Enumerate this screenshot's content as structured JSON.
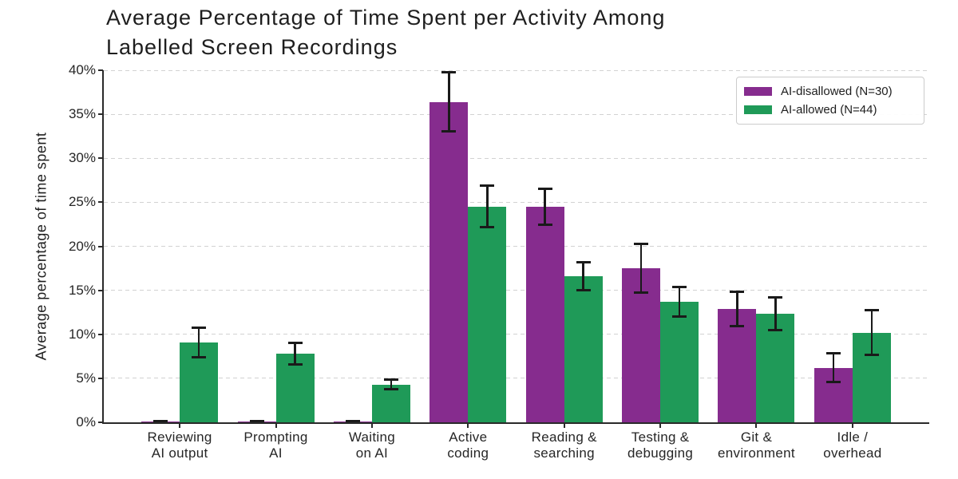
{
  "chart_data": {
    "type": "bar",
    "title": "Average Percentage of Time Spent per Activity Among\nLabelled Screen Recordings",
    "ylabel": "Average percentage of time spent",
    "xlabel": "",
    "ylim": [
      0,
      40
    ],
    "yticks": [
      "0%",
      "5%",
      "10%",
      "15%",
      "20%",
      "25%",
      "30%",
      "35%",
      "40%"
    ],
    "grid": "horizontal-dashed",
    "legend_position": "top-right",
    "categories": [
      "Reviewing\nAI output",
      "Prompting\nAI",
      "Waiting\non AI",
      "Active\ncoding",
      "Reading &\nsearching",
      "Testing &\ndebugging",
      "Git &\nenvironment",
      "Idle /\noverhead"
    ],
    "series": [
      {
        "name": "AI-disallowed (N=30)",
        "color": "#862c8e",
        "values": [
          0.1,
          0.1,
          0.1,
          36.4,
          24.5,
          17.5,
          12.9,
          6.2
        ],
        "errors": [
          0.15,
          0.15,
          0.15,
          3.5,
          2.2,
          2.9,
          2.1,
          1.8
        ]
      },
      {
        "name": "AI-allowed (N=44)",
        "color": "#1f9a58",
        "values": [
          9.1,
          7.8,
          4.3,
          24.5,
          16.6,
          13.7,
          12.3,
          10.2
        ],
        "errors": [
          1.8,
          1.4,
          0.7,
          2.5,
          1.7,
          1.8,
          2.0,
          2.7
        ]
      }
    ],
    "error_bar_color": "#1a1a1a",
    "gridline_color": "#d2d2d2"
  }
}
